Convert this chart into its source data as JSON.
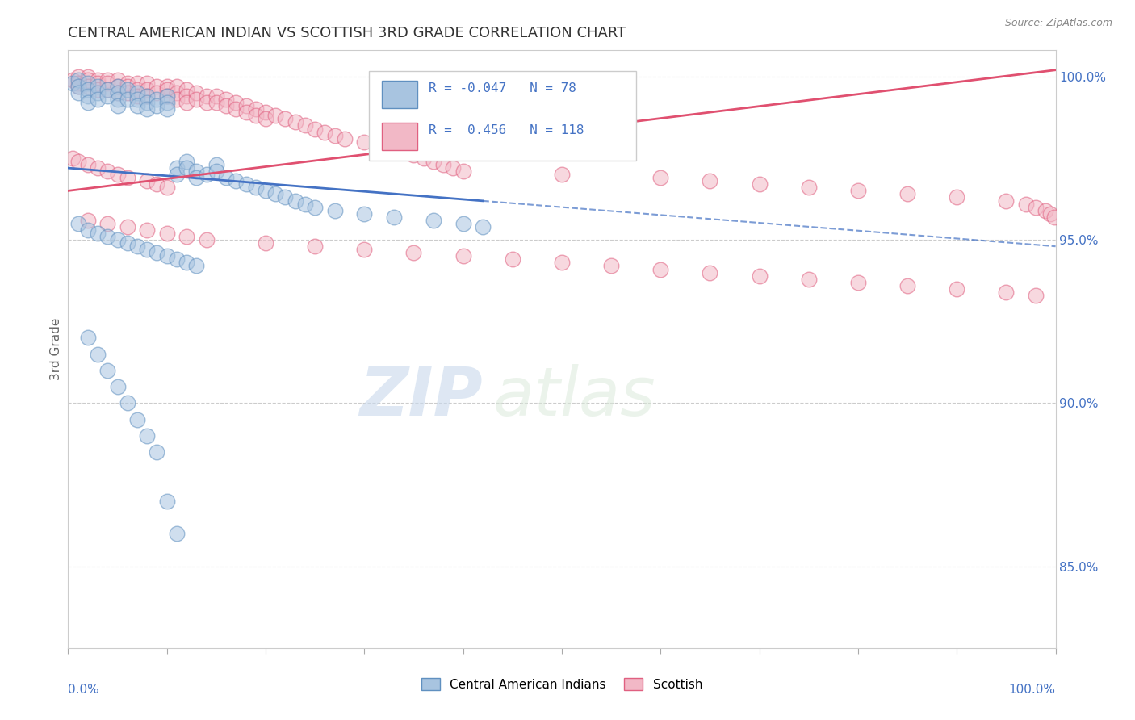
{
  "title": "CENTRAL AMERICAN INDIAN VS SCOTTISH 3RD GRADE CORRELATION CHART",
  "source": "Source: ZipAtlas.com",
  "ylabel": "3rd Grade",
  "ylabel_right_ticks": [
    "100.0%",
    "95.0%",
    "90.0%",
    "85.0%"
  ],
  "ylabel_right_vals": [
    1.0,
    0.95,
    0.9,
    0.85
  ],
  "xlim": [
    0.0,
    1.0
  ],
  "ylim": [
    0.825,
    1.008
  ],
  "blue_label": "Central American Indians",
  "pink_label": "Scottish",
  "blue_R": -0.047,
  "blue_N": 78,
  "pink_R": 0.456,
  "pink_N": 118,
  "blue_color": "#A8C4E0",
  "pink_color": "#F2B8C6",
  "blue_edge_color": "#6090C0",
  "pink_edge_color": "#E06080",
  "blue_line_color": "#4472C4",
  "pink_line_color": "#E05070",
  "watermark_zip": "ZIP",
  "watermark_atlas": "atlas",
  "blue_scatter_x": [
    0.005,
    0.01,
    0.01,
    0.01,
    0.02,
    0.02,
    0.02,
    0.02,
    0.03,
    0.03,
    0.03,
    0.04,
    0.04,
    0.05,
    0.05,
    0.05,
    0.05,
    0.06,
    0.06,
    0.07,
    0.07,
    0.07,
    0.08,
    0.08,
    0.08,
    0.09,
    0.09,
    0.1,
    0.1,
    0.1,
    0.11,
    0.11,
    0.12,
    0.12,
    0.13,
    0.13,
    0.14,
    0.15,
    0.15,
    0.16,
    0.17,
    0.18,
    0.19,
    0.2,
    0.21,
    0.22,
    0.23,
    0.24,
    0.25,
    0.27,
    0.3,
    0.33,
    0.37,
    0.4,
    0.42,
    0.01,
    0.02,
    0.03,
    0.04,
    0.05,
    0.06,
    0.07,
    0.08,
    0.09,
    0.1,
    0.11,
    0.12,
    0.13,
    0.02,
    0.03,
    0.04,
    0.05,
    0.06,
    0.07,
    0.08,
    0.09,
    0.1,
    0.11
  ],
  "blue_scatter_y": [
    0.998,
    0.999,
    0.997,
    0.995,
    0.998,
    0.996,
    0.994,
    0.992,
    0.997,
    0.995,
    0.993,
    0.996,
    0.994,
    0.997,
    0.995,
    0.993,
    0.991,
    0.996,
    0.993,
    0.995,
    0.993,
    0.991,
    0.994,
    0.992,
    0.99,
    0.993,
    0.991,
    0.994,
    0.992,
    0.99,
    0.972,
    0.97,
    0.974,
    0.972,
    0.971,
    0.969,
    0.97,
    0.973,
    0.971,
    0.969,
    0.968,
    0.967,
    0.966,
    0.965,
    0.964,
    0.963,
    0.962,
    0.961,
    0.96,
    0.959,
    0.958,
    0.957,
    0.956,
    0.955,
    0.954,
    0.955,
    0.953,
    0.952,
    0.951,
    0.95,
    0.949,
    0.948,
    0.947,
    0.946,
    0.945,
    0.944,
    0.943,
    0.942,
    0.92,
    0.915,
    0.91,
    0.905,
    0.9,
    0.895,
    0.89,
    0.885,
    0.87,
    0.86
  ],
  "pink_scatter_x": [
    0.005,
    0.01,
    0.01,
    0.01,
    0.02,
    0.02,
    0.02,
    0.03,
    0.03,
    0.03,
    0.04,
    0.04,
    0.04,
    0.05,
    0.05,
    0.05,
    0.06,
    0.06,
    0.06,
    0.07,
    0.07,
    0.07,
    0.08,
    0.08,
    0.08,
    0.09,
    0.09,
    0.1,
    0.1,
    0.1,
    0.11,
    0.11,
    0.11,
    0.12,
    0.12,
    0.12,
    0.13,
    0.13,
    0.14,
    0.14,
    0.15,
    0.15,
    0.16,
    0.16,
    0.17,
    0.17,
    0.18,
    0.18,
    0.19,
    0.19,
    0.2,
    0.2,
    0.21,
    0.22,
    0.23,
    0.24,
    0.25,
    0.26,
    0.27,
    0.28,
    0.3,
    0.32,
    0.33,
    0.34,
    0.35,
    0.36,
    0.37,
    0.38,
    0.39,
    0.4,
    0.5,
    0.6,
    0.65,
    0.7,
    0.75,
    0.8,
    0.85,
    0.9,
    0.95,
    0.97,
    0.98,
    0.99,
    0.995,
    0.999,
    0.02,
    0.04,
    0.06,
    0.08,
    0.1,
    0.12,
    0.14,
    0.2,
    0.25,
    0.3,
    0.35,
    0.4,
    0.45,
    0.5,
    0.55,
    0.6,
    0.65,
    0.7,
    0.75,
    0.8,
    0.85,
    0.9,
    0.95,
    0.98,
    0.005,
    0.01,
    0.02,
    0.03,
    0.04,
    0.05,
    0.06,
    0.08,
    0.09,
    0.1
  ],
  "pink_scatter_y": [
    0.999,
    1.0,
    0.998,
    0.997,
    1.0,
    0.999,
    0.997,
    0.999,
    0.998,
    0.996,
    0.999,
    0.998,
    0.996,
    0.999,
    0.997,
    0.995,
    0.998,
    0.997,
    0.995,
    0.998,
    0.996,
    0.994,
    0.998,
    0.996,
    0.994,
    0.997,
    0.995,
    0.997,
    0.996,
    0.994,
    0.997,
    0.995,
    0.993,
    0.996,
    0.994,
    0.992,
    0.995,
    0.993,
    0.994,
    0.992,
    0.994,
    0.992,
    0.993,
    0.991,
    0.992,
    0.99,
    0.991,
    0.989,
    0.99,
    0.988,
    0.989,
    0.987,
    0.988,
    0.987,
    0.986,
    0.985,
    0.984,
    0.983,
    0.982,
    0.981,
    0.98,
    0.979,
    0.978,
    0.977,
    0.976,
    0.975,
    0.974,
    0.973,
    0.972,
    0.971,
    0.97,
    0.969,
    0.968,
    0.967,
    0.966,
    0.965,
    0.964,
    0.963,
    0.962,
    0.961,
    0.96,
    0.959,
    0.958,
    0.957,
    0.956,
    0.955,
    0.954,
    0.953,
    0.952,
    0.951,
    0.95,
    0.949,
    0.948,
    0.947,
    0.946,
    0.945,
    0.944,
    0.943,
    0.942,
    0.941,
    0.94,
    0.939,
    0.938,
    0.937,
    0.936,
    0.935,
    0.934,
    0.933,
    0.975,
    0.974,
    0.973,
    0.972,
    0.971,
    0.97,
    0.969,
    0.968,
    0.967,
    0.966
  ]
}
